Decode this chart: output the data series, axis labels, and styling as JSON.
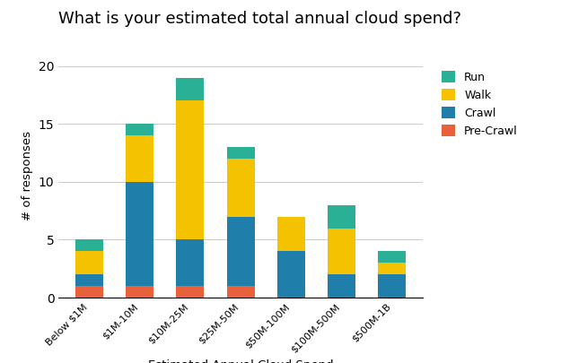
{
  "categories": [
    "Below $1M",
    "$1M-10M",
    "$10M-25M",
    "$25M-50M",
    "$50M-100M",
    "$100M-500M",
    "$500M-1B"
  ],
  "pre_crawl": [
    1,
    1,
    1,
    1,
    0,
    0,
    0
  ],
  "crawl": [
    1,
    9,
    4,
    6,
    4,
    2,
    2
  ],
  "walk": [
    2,
    4,
    12,
    5,
    3,
    4,
    1
  ],
  "run": [
    1,
    1,
    2,
    1,
    0,
    2,
    1
  ],
  "colors": {
    "pre_crawl": "#e8603c",
    "crawl": "#1f7faa",
    "walk": "#f5c200",
    "run": "#2ab094"
  },
  "title": "What is your estimated total annual cloud spend?",
  "xlabel": "Estimated Annual Cloud Spend",
  "ylabel": "# of responses",
  "ylim": [
    0,
    21
  ],
  "yticks": [
    0,
    5,
    10,
    15,
    20
  ],
  "legend_labels": [
    "Run",
    "Walk",
    "Crawl",
    "Pre-Crawl"
  ],
  "background_color": "#ffffff",
  "title_fontsize": 13,
  "label_fontsize": 9.5
}
